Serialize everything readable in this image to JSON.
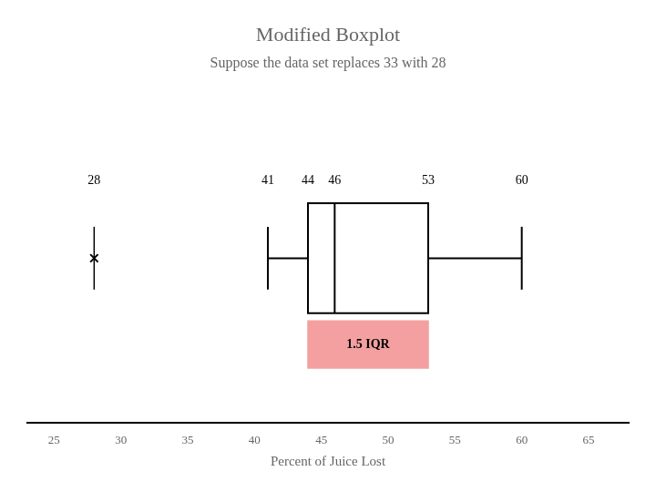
{
  "chart_data": {
    "type": "boxplot",
    "orientation": "horizontal",
    "title": "Modified Boxplot",
    "subtitle": "Suppose the data set replaces 33 with 28",
    "xlabel": "Percent of Juice Lost",
    "whisker_low": 41,
    "q1": 44,
    "median": 46,
    "q3": 53,
    "whisker_high": 60,
    "outliers": [
      28
    ],
    "xlim": [
      23,
      68
    ],
    "xticks": [
      25,
      30,
      35,
      40,
      45,
      50,
      55,
      60,
      65
    ],
    "grid": false,
    "annotations": [
      {
        "text": "1.5 IQR",
        "x": 48.5,
        "color": "#f4a0a0"
      },
      {
        "text": "28",
        "x": 28
      },
      {
        "text": "41",
        "x": 41
      },
      {
        "text": "44",
        "x": 44
      },
      {
        "text": "46",
        "x": 46
      },
      {
        "text": "53",
        "x": 53
      },
      {
        "text": "60",
        "x": 60
      }
    ]
  }
}
